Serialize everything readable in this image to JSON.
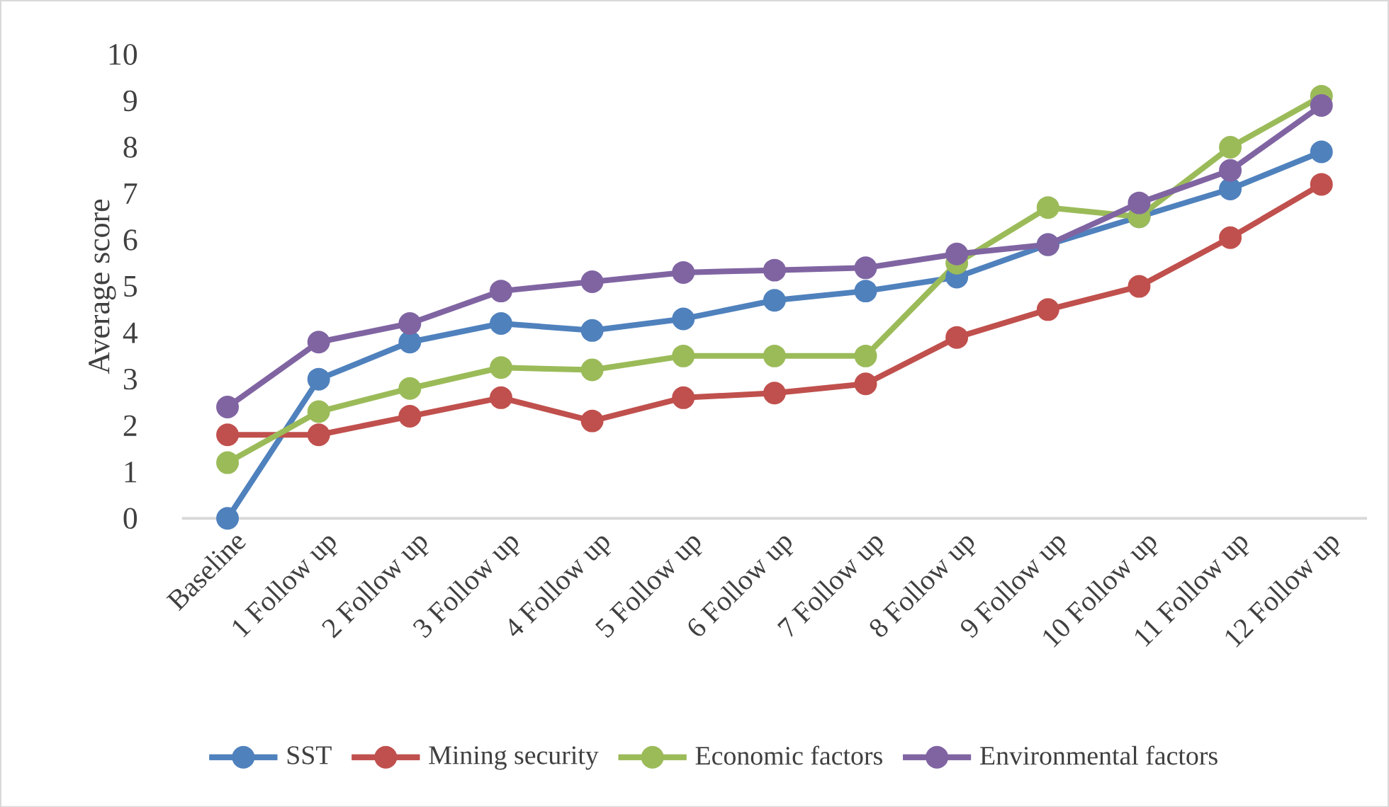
{
  "chart_data": {
    "type": "line",
    "ylabel": "Average score",
    "categories": [
      "Baseline",
      "1 Follow up",
      "2 Follow up",
      "3 Follow up",
      "4 Follow up",
      "5 Follow up",
      "6 Follow up",
      "7 Follow up",
      "8 Follow up",
      "9 Follow up",
      "10 Follow up",
      "11 Follow up",
      "12 Follow up"
    ],
    "series": [
      {
        "name": "SST",
        "color": "#4f81bd",
        "values": [
          0,
          3,
          3.8,
          4.2,
          4.05,
          4.3,
          4.7,
          4.9,
          5.2,
          5.9,
          6.5,
          7.1,
          7.9
        ]
      },
      {
        "name": "Mining security",
        "color": "#c0504d",
        "values": [
          1.8,
          1.8,
          2.2,
          2.6,
          2.1,
          2.6,
          2.7,
          2.9,
          3.9,
          4.5,
          5.0,
          6.05,
          7.2
        ]
      },
      {
        "name": "Economic factors",
        "color": "#9bbb59",
        "values": [
          1.2,
          2.3,
          2.8,
          3.25,
          3.2,
          3.5,
          3.5,
          3.5,
          5.5,
          6.7,
          6.5,
          8.0,
          9.1
        ]
      },
      {
        "name": "Environmental factors",
        "color": "#8064a2",
        "values": [
          2.4,
          3.8,
          4.2,
          4.9,
          5.1,
          5.3,
          5.35,
          5.4,
          5.7,
          5.9,
          6.8,
          7.5,
          8.9
        ]
      }
    ],
    "ylim": [
      0,
      10
    ],
    "yticks": [
      0,
      1,
      2,
      3,
      4,
      5,
      6,
      7,
      8,
      9,
      10
    ],
    "marker": "circle",
    "line_style": "solid",
    "legend": "bottom",
    "grid": false
  }
}
